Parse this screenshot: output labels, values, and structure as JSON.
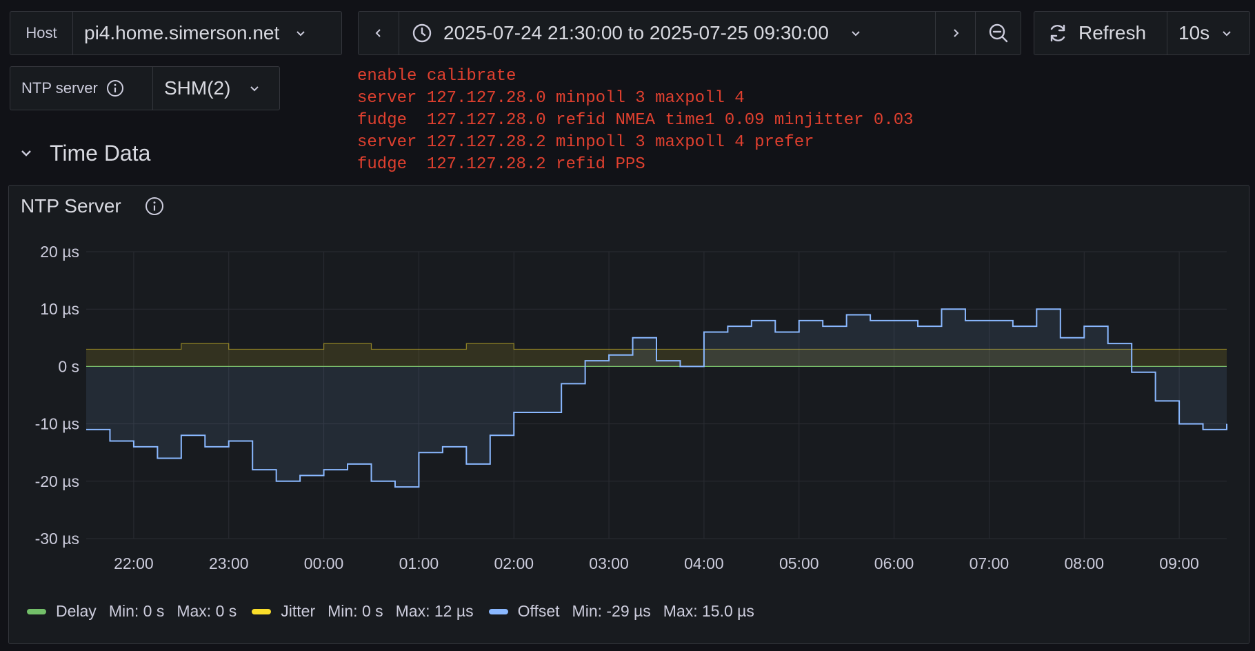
{
  "variables": {
    "host": {
      "label": "Host",
      "value": "pi4.home.simerson.net"
    },
    "ntp_server": {
      "label": "NTP server",
      "value": "SHM(2)"
    }
  },
  "time_picker": {
    "range": "2025-07-24 21:30:00 to 2025-07-25 09:30:00"
  },
  "refresh": {
    "label": "Refresh",
    "interval": "10s"
  },
  "config_text": [
    "enable calibrate",
    "server 127.127.28.0 minpoll 3 maxpoll 4",
    "fudge  127.127.28.0 refid NMEA time1 0.09 minjitter 0.03",
    "server 127.127.28.2 minpoll 3 maxpoll 4 prefer",
    "fudge  127.127.28.2 refid PPS"
  ],
  "row": {
    "title": "Time Data"
  },
  "panel": {
    "title": "NTP Server"
  },
  "legend": [
    {
      "name": "Delay",
      "min": "Min: 0 s",
      "max": "Max: 0 s",
      "color": "#73bf69"
    },
    {
      "name": "Jitter",
      "min": "Min: 0 s",
      "max": "Max: 12 µs",
      "color": "#fade2a"
    },
    {
      "name": "Offset",
      "min": "Min: -29 µs",
      "max": "Max: 15.0 µs",
      "color": "#8ab8ff"
    }
  ],
  "chart_data": {
    "type": "line",
    "y_unit": "µs",
    "ylim": [
      -30,
      20
    ],
    "y_ticks": [
      "20 µs",
      "10 µs",
      "0 s",
      "-10 µs",
      "-20 µs",
      "-30 µs"
    ],
    "x_ticks": [
      "22:00",
      "23:00",
      "00:00",
      "01:00",
      "02:00",
      "03:00",
      "04:00",
      "05:00",
      "06:00",
      "07:00",
      "08:00",
      "09:00"
    ],
    "x_tick_hours": [
      22,
      23,
      24,
      25,
      26,
      27,
      28,
      29,
      30,
      31,
      32,
      33
    ],
    "xlim_hours": [
      21.5,
      33.5
    ],
    "grid": true,
    "legend_position": "bottom",
    "series": [
      {
        "name": "Delay",
        "color": "#73bf69",
        "x_hours": [
          21.5,
          33.5
        ],
        "values": [
          0,
          0
        ]
      },
      {
        "name": "Jitter",
        "color": "#fade2a",
        "x_hours": [
          21.5,
          22.0,
          22.5,
          23.0,
          23.5,
          24.0,
          24.5,
          25.0,
          25.5,
          26.0,
          26.5,
          27.0,
          27.5,
          28.0,
          28.5,
          29.0,
          29.5,
          30.0,
          30.5,
          31.0,
          31.5,
          32.0,
          32.5,
          33.0,
          33.5
        ],
        "values": [
          3,
          3,
          4,
          3,
          3,
          4,
          3,
          3,
          4,
          3,
          3,
          3,
          3,
          3,
          3,
          3,
          3,
          3,
          3,
          3,
          3,
          3,
          3,
          3,
          3
        ]
      },
      {
        "name": "Offset",
        "color": "#8ab8ff",
        "x_hours": [
          21.5,
          21.75,
          22.0,
          22.25,
          22.5,
          22.75,
          23.0,
          23.25,
          23.5,
          23.75,
          24.0,
          24.25,
          24.5,
          24.75,
          25.0,
          25.25,
          25.5,
          25.75,
          26.0,
          26.25,
          26.5,
          26.75,
          27.0,
          27.25,
          27.5,
          27.75,
          28.0,
          28.25,
          28.5,
          28.75,
          29.0,
          29.25,
          29.5,
          29.75,
          30.0,
          30.25,
          30.5,
          30.75,
          31.0,
          31.25,
          31.5,
          31.75,
          32.0,
          32.25,
          32.5,
          32.75,
          33.0,
          33.25,
          33.5
        ],
        "values": [
          -11,
          -13,
          -14,
          -16,
          -12,
          -14,
          -13,
          -18,
          -20,
          -19,
          -18,
          -17,
          -20,
          -21,
          -15,
          -14,
          -17,
          -12,
          -8,
          -8,
          -3,
          1,
          2,
          5,
          1,
          0,
          6,
          7,
          8,
          6,
          8,
          7,
          9,
          8,
          8,
          7,
          10,
          8,
          8,
          7,
          10,
          5,
          7,
          4,
          -1,
          -6,
          -10,
          -11,
          -10
        ]
      }
    ]
  }
}
